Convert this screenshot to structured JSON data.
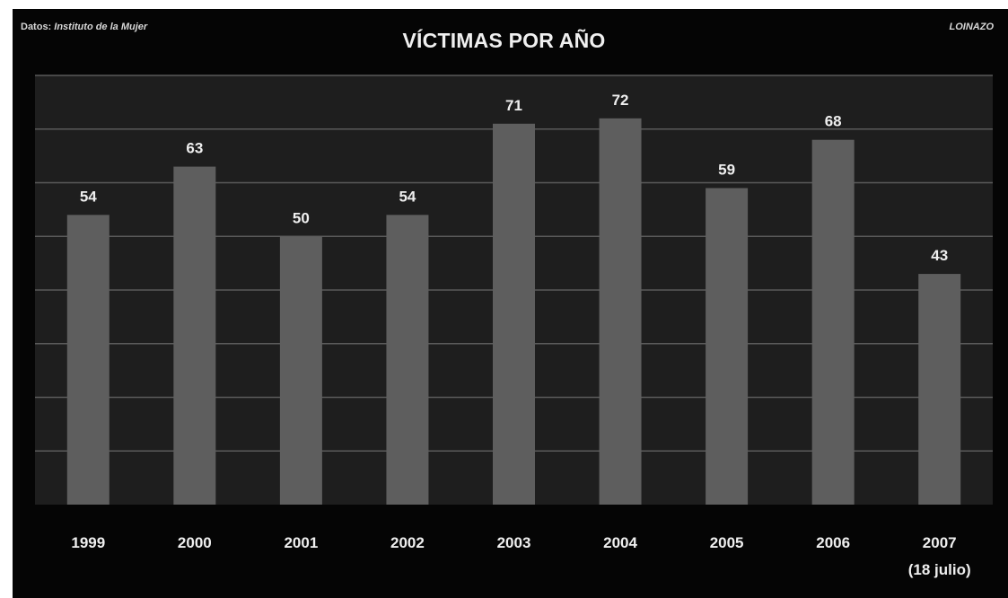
{
  "header": {
    "source_prefix": "Datos: ",
    "source_name": "Instituto de la Mujer",
    "author": "LOINAZO"
  },
  "chart_data": {
    "type": "bar",
    "title": "VÍCTIMAS POR AÑO",
    "xlabel": "",
    "ylabel": "",
    "categories": [
      "1999",
      "2000",
      "2001",
      "2002",
      "2003",
      "2004",
      "2005",
      "2006",
      "2007"
    ],
    "category_sublabels": [
      "",
      "",
      "",
      "",
      "",
      "",
      "",
      "",
      "(18 julio)"
    ],
    "values": [
      54,
      63,
      50,
      54,
      71,
      72,
      59,
      68,
      43
    ],
    "ylim": [
      0,
      80
    ],
    "grid": true,
    "legend": "none",
    "colors": {
      "background": "#050505",
      "plot_background": "#1e1e1e",
      "bar": "#5e5e5e",
      "text": "#efefef"
    }
  }
}
